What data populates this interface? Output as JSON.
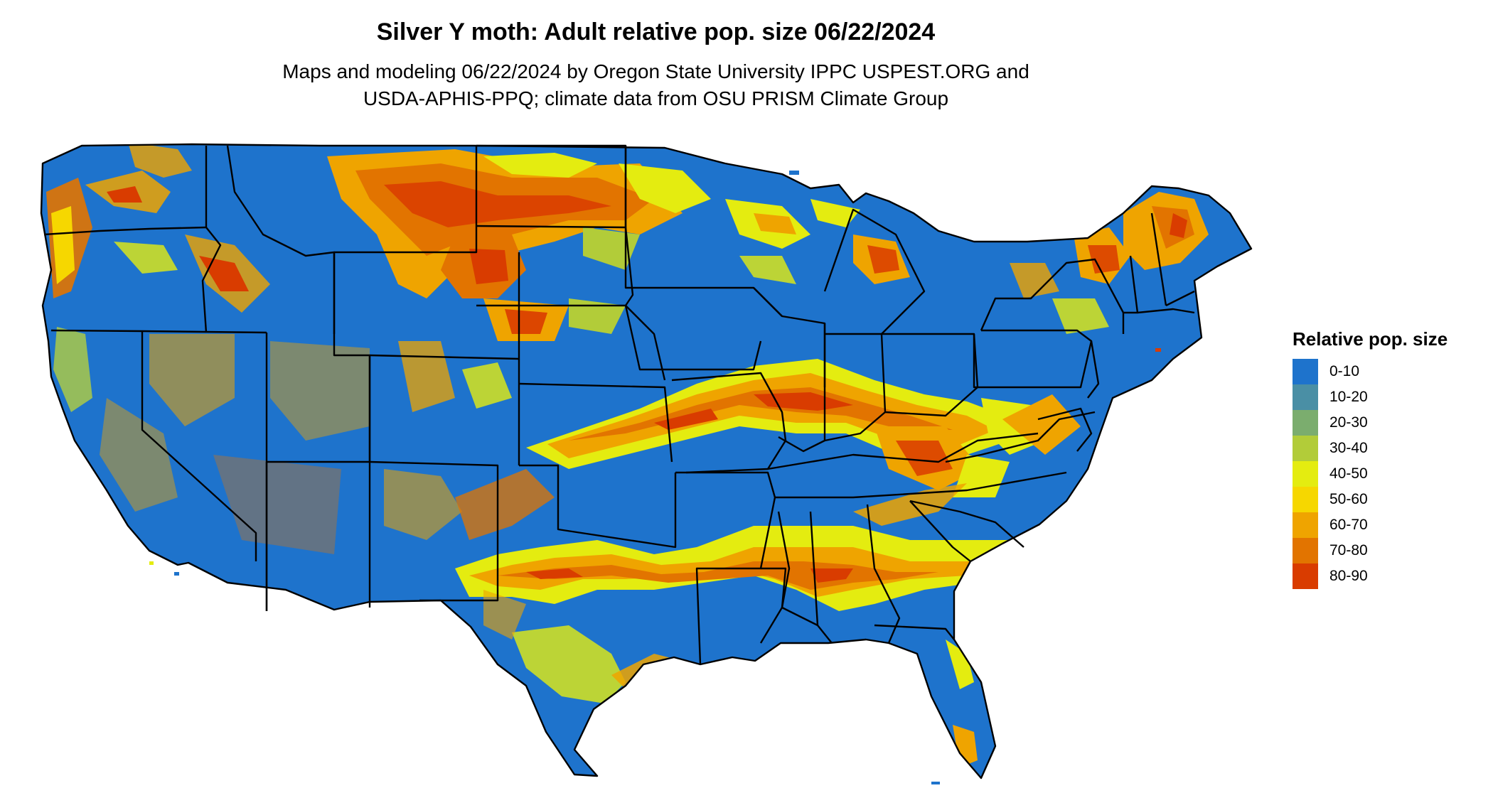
{
  "title": "Silver Y moth: Adult relative pop. size 06/22/2024",
  "subtitle_line1": "Maps and modeling 06/22/2024 by Oregon State University IPPC USPEST.ORG and",
  "subtitle_line2": "USDA-APHIS-PPQ; climate data from OSU PRISM Climate Group",
  "legend": {
    "title": "Relative pop. size",
    "items": [
      {
        "label": "0-10",
        "color": "#1e73cc"
      },
      {
        "label": "10-20",
        "color": "#4a8fa5"
      },
      {
        "label": "20-30",
        "color": "#7bad6e"
      },
      {
        "label": "30-40",
        "color": "#b2cc39"
      },
      {
        "label": "40-50",
        "color": "#e4ec10"
      },
      {
        "label": "50-60",
        "color": "#f6d700"
      },
      {
        "label": "60-70",
        "color": "#efa400"
      },
      {
        "label": "70-80",
        "color": "#e27400"
      },
      {
        "label": "80-90",
        "color": "#d93c00"
      }
    ]
  },
  "colors": {
    "background": "#ffffff",
    "state_border": "#000000"
  }
}
